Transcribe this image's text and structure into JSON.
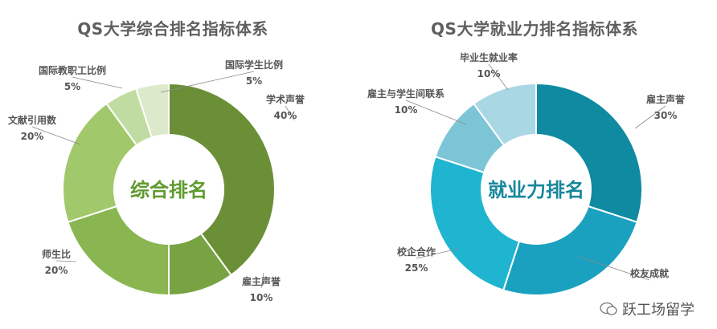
{
  "charts": [
    {
      "title": "QS大学综合排名指标体系",
      "center_label": "综合排名",
      "center_color": "#5f9a2e",
      "colors": [
        "#6b8f36",
        "#77a342",
        "#89b650",
        "#a1c86a",
        "#c1dca3",
        "#dceacb"
      ],
      "chart_data": {
        "type": "pie",
        "donut": true,
        "categories": [
          "学术声誉",
          "雇主声誉",
          "师生比",
          "文献引用数",
          "国际教职工比例",
          "国际学生比例"
        ],
        "values": [
          40,
          10,
          20,
          20,
          5,
          5
        ],
        "value_labels": [
          "40%",
          "10%",
          "20%",
          "20%",
          "5%",
          "5%"
        ]
      }
    },
    {
      "title": "QS大学就业力排名指标体系",
      "center_label": "就业力排名",
      "center_color": "#16879c",
      "colors": [
        "#0f8aa1",
        "#1aa1bf",
        "#1fb5d0",
        "#7cc5d7",
        "#a9d7e4"
      ],
      "chart_data": {
        "type": "pie",
        "donut": true,
        "categories": [
          "雇主声誉",
          "校友成就",
          "校企合作",
          "雇主与学生间联系",
          "毕业生就业率"
        ],
        "values": [
          30,
          25,
          25,
          10,
          10
        ],
        "value_labels": [
          "30%",
          "",
          "25%",
          "10%",
          "10%"
        ]
      }
    }
  ],
  "watermark": "跃工场留学"
}
